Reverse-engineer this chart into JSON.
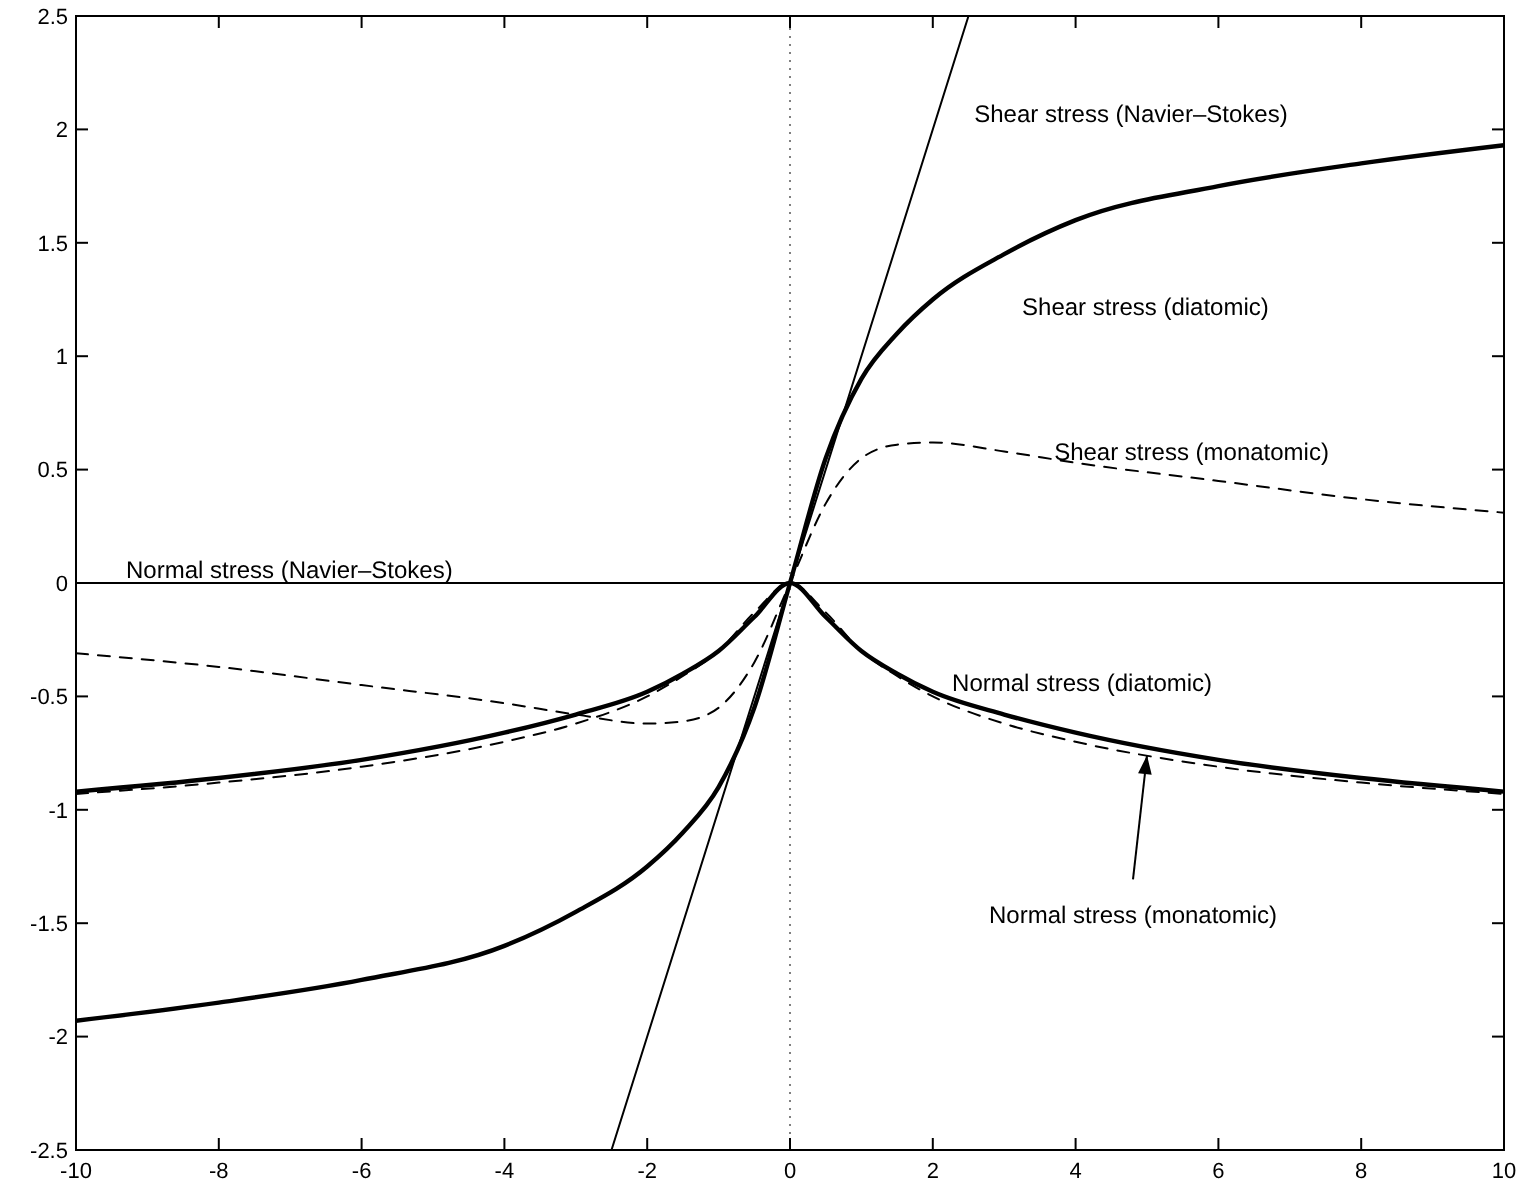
{
  "chart_data": {
    "type": "line",
    "xlim": [
      -10,
      10
    ],
    "ylim": [
      -2.5,
      2.5
    ],
    "xticks": [
      -10,
      -8,
      -6,
      -4,
      -2,
      0,
      2,
      4,
      6,
      8,
      10
    ],
    "yticks": [
      -2.5,
      -2,
      -1.5,
      -1,
      -0.5,
      0,
      0.5,
      1,
      1.5,
      2,
      2.5
    ],
    "grid": false,
    "marker": "none",
    "annotations": [
      {
        "text": "Normal stress (monatomic)",
        "x": 5,
        "y": -0.76
      }
    ],
    "ref_lines": [
      {
        "axis": "x",
        "value": 0,
        "line_style": "dotted",
        "color": "#808080"
      }
    ],
    "series": [
      {
        "name": "Shear stress (Navier–Stokes)",
        "color": "#000000",
        "line_style": "solid",
        "x": [
          -2.5,
          2.5
        ],
        "values": [
          -2.5,
          2.5
        ]
      },
      {
        "name": "Normal stress (Navier–Stokes)",
        "color": "#000000",
        "line_style": "solid",
        "x": [
          -10,
          10
        ],
        "values": [
          0,
          0
        ]
      },
      {
        "name": "Shear stress (diatomic)",
        "color": "#000000",
        "line_style": "solid",
        "x": [
          -10,
          -8,
          -6,
          -4,
          -3,
          -2,
          -1.5,
          -1,
          -0.5,
          0,
          0.5,
          1,
          1.5,
          2,
          3,
          4,
          6,
          8,
          10
        ],
        "values": [
          -1.93,
          -1.85,
          -1.75,
          -1.6,
          -1.45,
          -1.25,
          -1.1,
          -0.9,
          -0.55,
          0,
          0.55,
          0.9,
          1.1,
          1.25,
          1.45,
          1.6,
          1.75,
          1.85,
          1.93
        ]
      },
      {
        "name": "Shear stress (monatomic)",
        "color": "#000000",
        "line_style": "dashed",
        "x": [
          -10,
          -8,
          -6,
          -4,
          -3,
          -2,
          -1.5,
          -1,
          -0.5,
          0,
          0.5,
          1,
          1.5,
          2,
          3,
          4,
          6,
          8,
          10
        ],
        "values": [
          -0.31,
          -0.37,
          -0.45,
          -0.53,
          -0.58,
          -0.62,
          -0.61,
          -0.55,
          -0.35,
          0,
          0.35,
          0.55,
          0.61,
          0.62,
          0.58,
          0.53,
          0.45,
          0.37,
          0.31
        ]
      },
      {
        "name": "Normal stress (diatomic)",
        "color": "#000000",
        "line_style": "solid",
        "x": [
          -10,
          -8,
          -6,
          -4,
          -3,
          -2,
          -1.5,
          -1,
          -0.5,
          0,
          0.5,
          1,
          1.5,
          2,
          3,
          4,
          6,
          8,
          10
        ],
        "values": [
          -0.92,
          -0.86,
          -0.78,
          -0.66,
          -0.58,
          -0.48,
          -0.4,
          -0.3,
          -0.15,
          0,
          -0.15,
          -0.3,
          -0.4,
          -0.48,
          -0.58,
          -0.66,
          -0.78,
          -0.86,
          -0.92
        ]
      },
      {
        "color": "#000000",
        "line_style": "dashed",
        "x": [
          -10,
          -8,
          -6,
          -4,
          -3,
          -2,
          -1.5,
          -1,
          -0.5,
          0,
          0.5,
          1,
          1.5,
          2,
          3,
          4,
          6,
          8,
          10
        ],
        "values": [
          -0.93,
          -0.88,
          -0.81,
          -0.7,
          -0.62,
          -0.5,
          -0.41,
          -0.3,
          -0.13,
          0,
          -0.13,
          -0.3,
          -0.41,
          -0.5,
          -0.62,
          -0.7,
          -0.81,
          -0.88,
          -0.93
        ]
      }
    ]
  }
}
